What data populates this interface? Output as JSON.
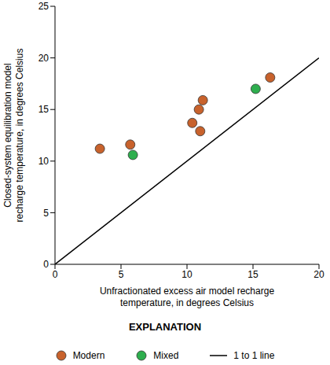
{
  "chart_data": {
    "type": "scatter",
    "x_label": "Unfractionated excess air model recharge temperature, in degrees Celsius",
    "y_label": "Closed-system equilibration model recharge temperature, in degrees Celsius",
    "legend_title": "EXPLANATION",
    "legend": "bottom",
    "xlim": [
      0,
      20
    ],
    "xticks": [
      0,
      5,
      10,
      15,
      20
    ],
    "ylim": [
      0,
      25
    ],
    "yticks": [
      0,
      5,
      10,
      15,
      20,
      25
    ],
    "series": [
      {
        "name": "Modern",
        "color": "#c8622c",
        "marker": "circle",
        "x": [
          3.4,
          5.7,
          10.4,
          10.9,
          11.2,
          11.0,
          16.3
        ],
        "values": [
          11.2,
          11.6,
          13.7,
          15.0,
          15.9,
          12.9,
          18.1
        ]
      },
      {
        "name": "Mixed",
        "color": "#2eae4e",
        "marker": "circle",
        "x": [
          5.9,
          15.2
        ],
        "values": [
          10.6,
          17.0
        ]
      },
      {
        "name": "1 to 1 line",
        "color": "#000000",
        "type": "line",
        "line_style": "solid",
        "x": [
          0,
          20
        ],
        "values": [
          0,
          20
        ]
      }
    ]
  }
}
